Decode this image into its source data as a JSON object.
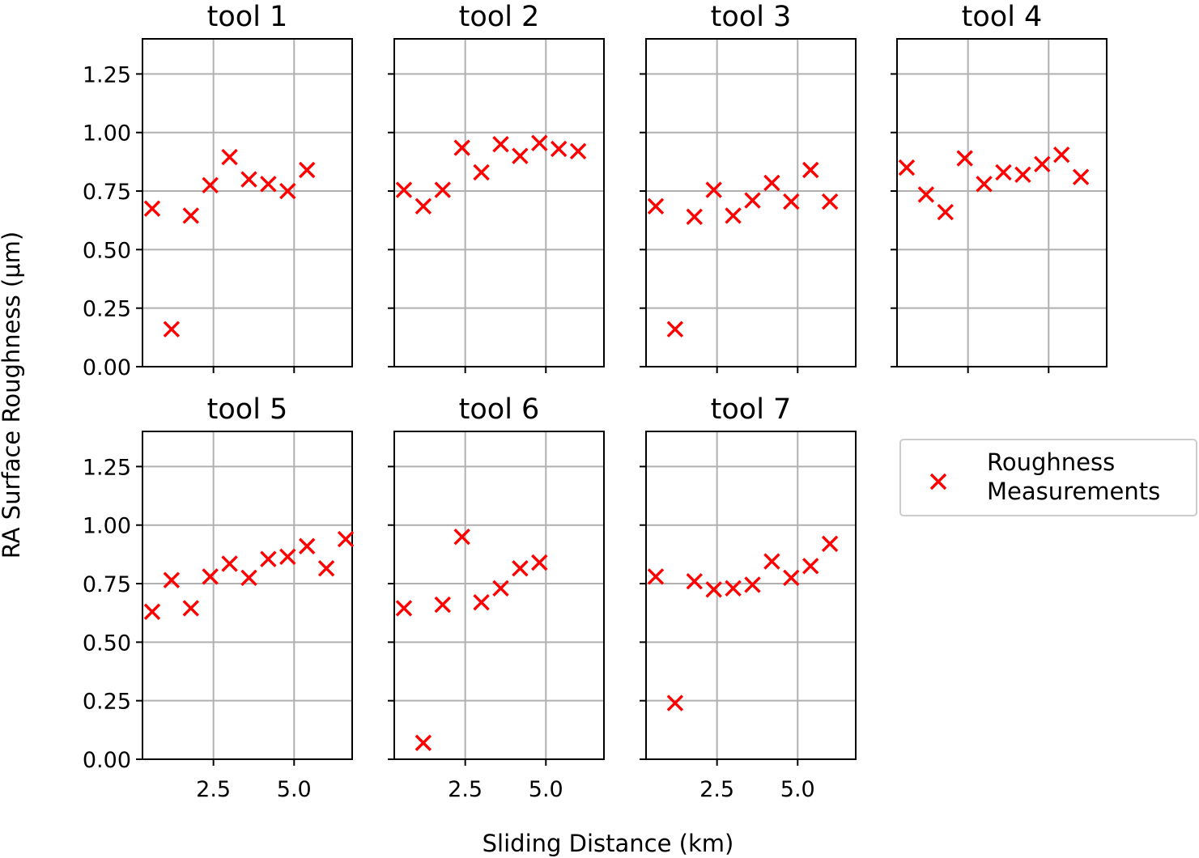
{
  "chart_data": {
    "type": "scatter",
    "ylabel": "RA Surface Roughness (μm)",
    "xlabel": "Sliding Distance (km)",
    "ylim": [
      0,
      1.4
    ],
    "xlim": [
      0.3,
      6.8
    ],
    "yticks": [
      0.0,
      0.25,
      0.5,
      0.75,
      1.0,
      1.25
    ],
    "ytick_labels": [
      "0.00",
      "0.25",
      "0.50",
      "0.75",
      "1.00",
      "1.25"
    ],
    "xticks": [
      2.5,
      5.0
    ],
    "xtick_labels": [
      "2.5",
      "5.0"
    ],
    "grid": true,
    "marker": "x",
    "marker_color": "#ff0000",
    "legend": {
      "placement": "right",
      "label": "Roughness\nMeasurements"
    },
    "panels": [
      {
        "title": "tool 1",
        "x": [
          0.6,
          1.2,
          1.8,
          2.4,
          3.0,
          3.6,
          4.2,
          4.8,
          5.4
        ],
        "y": [
          0.675,
          0.16,
          0.645,
          0.775,
          0.895,
          0.8,
          0.78,
          0.75,
          0.84
        ]
      },
      {
        "title": "tool 2",
        "x": [
          0.6,
          1.2,
          1.8,
          2.4,
          3.0,
          3.6,
          4.2,
          4.8,
          5.4,
          6.0
        ],
        "y": [
          0.755,
          0.685,
          0.755,
          0.935,
          0.83,
          0.95,
          0.9,
          0.955,
          0.93,
          0.92
        ]
      },
      {
        "title": "tool 3",
        "x": [
          0.6,
          1.2,
          1.8,
          2.4,
          3.0,
          3.6,
          4.2,
          4.8,
          5.4,
          6.0
        ],
        "y": [
          0.685,
          0.16,
          0.64,
          0.755,
          0.645,
          0.71,
          0.785,
          0.705,
          0.84,
          0.705
        ]
      },
      {
        "title": "tool 4",
        "x": [
          0.6,
          1.2,
          1.8,
          2.4,
          3.0,
          3.6,
          4.2,
          4.8,
          5.4,
          6.0
        ],
        "y": [
          0.85,
          0.735,
          0.66,
          0.89,
          0.78,
          0.83,
          0.82,
          0.865,
          0.905,
          0.81
        ]
      },
      {
        "title": "tool 5",
        "x": [
          0.6,
          1.2,
          1.8,
          2.4,
          3.0,
          3.6,
          4.2,
          4.8,
          5.4,
          6.0,
          6.6
        ],
        "y": [
          0.63,
          0.765,
          0.645,
          0.78,
          0.835,
          0.775,
          0.855,
          0.865,
          0.91,
          0.815,
          0.94
        ]
      },
      {
        "title": "tool 6",
        "x": [
          0.6,
          1.2,
          1.8,
          2.4,
          3.0,
          3.6,
          4.2,
          4.8
        ],
        "y": [
          0.645,
          0.07,
          0.66,
          0.95,
          0.67,
          0.73,
          0.815,
          0.84
        ]
      },
      {
        "title": "tool 7",
        "x": [
          0.6,
          1.2,
          1.8,
          2.4,
          3.0,
          3.6,
          4.2,
          4.8,
          5.4,
          6.0
        ],
        "y": [
          0.78,
          0.24,
          0.76,
          0.725,
          0.73,
          0.745,
          0.845,
          0.775,
          0.825,
          0.92
        ]
      }
    ]
  }
}
